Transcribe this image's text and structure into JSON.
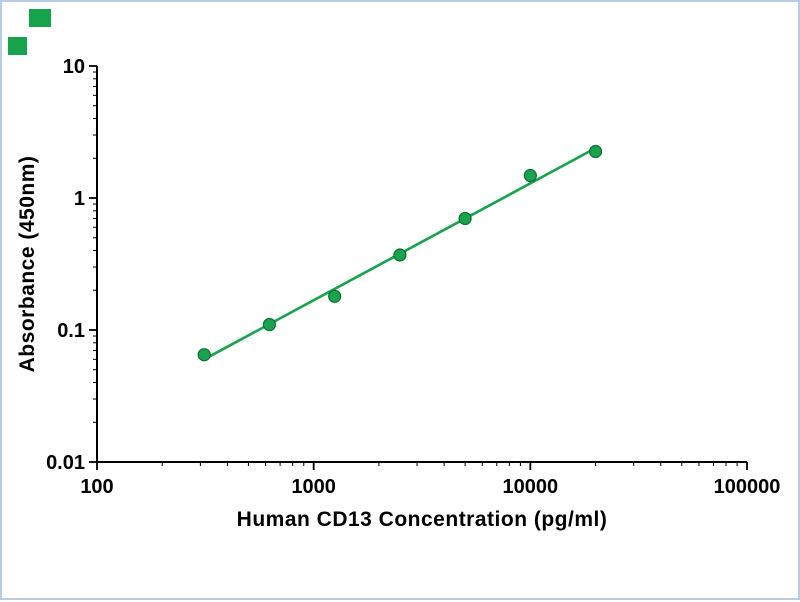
{
  "frame": {
    "border_color": "#b8cce4",
    "background": "#ffffff"
  },
  "decor": {
    "squares": [
      {
        "color": "#17a24c"
      },
      {
        "color": "#17a24c"
      }
    ]
  },
  "chart_data": {
    "type": "scatter",
    "title": "",
    "xlabel": "Human CD13 Concentration (pg/ml)",
    "ylabel": "Absorbance (450nm)",
    "xscale": "log",
    "yscale": "log",
    "xlim": [
      100,
      100000
    ],
    "ylim": [
      0.01,
      10
    ],
    "x": [
      312.5,
      625,
      1250,
      2500,
      5000,
      10000,
      20000
    ],
    "y": [
      0.065,
      0.11,
      0.18,
      0.37,
      0.7,
      1.48,
      2.25
    ],
    "x_tick_labels": [
      "100",
      "1000",
      "10000",
      "100000"
    ],
    "y_tick_labels": [
      "10",
      "1",
      "0.1",
      "0.01"
    ],
    "minor_ticks": true,
    "grid": false,
    "legend": false,
    "fit_line": true,
    "marker_color": "#1ba24e",
    "marker_edge_color": "#0b6e33",
    "line_color": "#17a24c",
    "axis_color": "#000000"
  }
}
